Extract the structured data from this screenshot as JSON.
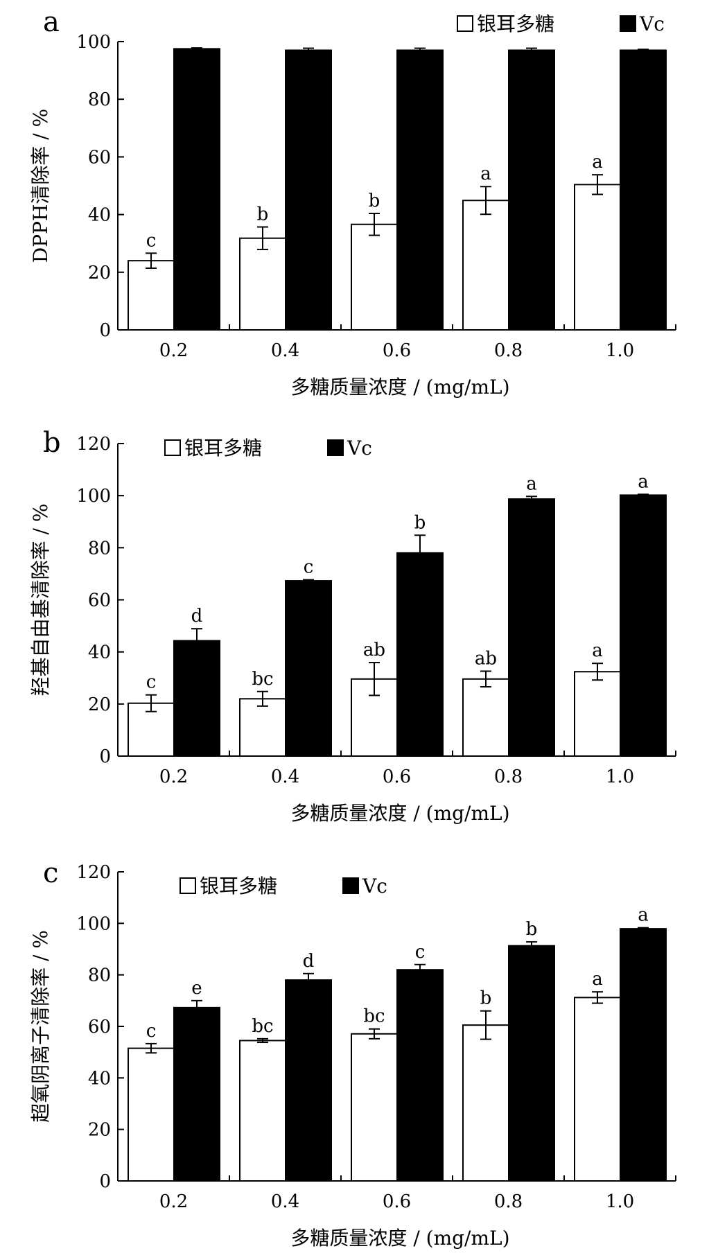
{
  "chart_data": [
    {
      "panel_label": "a",
      "type": "bar",
      "categories": [
        "0.2",
        "0.4",
        "0.6",
        "0.8",
        "1.0"
      ],
      "xlabel": "多糖质量浓度 / (mg/mL)",
      "ylabel": "DPPH清除率 / %",
      "ylim": [
        0,
        100
      ],
      "yticks": [
        "0",
        "20",
        "40",
        "60",
        "80",
        "100"
      ],
      "legend": [
        "银耳多糖",
        "Vc"
      ],
      "legend_position": "top-right",
      "series": [
        {
          "name": "银耳多糖",
          "color": "#ffffff",
          "values": [
            24,
            31.8,
            36.6,
            44.9,
            50.4
          ],
          "errors": [
            2.6,
            3.9,
            3.8,
            4.8,
            3.4
          ],
          "letters": [
            "c",
            "b",
            "b",
            "a",
            "a"
          ]
        },
        {
          "name": "Vc",
          "color": "#000000",
          "values": [
            97.5,
            97,
            97,
            97,
            97
          ],
          "errors": [
            0.3,
            0.7,
            0.7,
            0.7,
            0.3
          ],
          "letters": []
        }
      ]
    },
    {
      "panel_label": "b",
      "type": "bar",
      "categories": [
        "0.2",
        "0.4",
        "0.6",
        "0.8",
        "1.0"
      ],
      "xlabel": "多糖质量浓度 / (mg/mL)",
      "ylabel": "羟基自由基清除率 / %",
      "ylim": [
        0,
        120
      ],
      "yticks": [
        "0",
        "20",
        "40",
        "60",
        "80",
        "100",
        "120"
      ],
      "legend": [
        "银耳多糖",
        "Vc"
      ],
      "legend_position": "top-left",
      "series": [
        {
          "name": "银耳多糖",
          "color": "#ffffff",
          "values": [
            20.3,
            22,
            29.6,
            29.6,
            32.4
          ],
          "errors": [
            3.2,
            2.8,
            6.3,
            3,
            3.2
          ],
          "letters": [
            "c",
            "bc",
            "ab",
            "ab",
            "a"
          ]
        },
        {
          "name": "Vc",
          "color": "#000000",
          "values": [
            44.3,
            67.3,
            78,
            98.7,
            100.2
          ],
          "errors": [
            4.6,
            0.4,
            6.8,
            1,
            0.3
          ],
          "letters": [
            "d",
            "c",
            "b",
            "a",
            "a"
          ]
        }
      ]
    },
    {
      "panel_label": "c",
      "type": "bar",
      "categories": [
        "0.2",
        "0.4",
        "0.6",
        "0.8",
        "1.0"
      ],
      "xlabel": "多糖质量浓度 / (mg/mL)",
      "ylabel": "超氧阴离子清除率 / %",
      "ylim": [
        0,
        120
      ],
      "yticks": [
        "0",
        "20",
        "40",
        "60",
        "80",
        "100",
        "120"
      ],
      "legend": [
        "银耳多糖",
        "Vc"
      ],
      "legend_position": "top-left",
      "series": [
        {
          "name": "银耳多糖",
          "color": "#ffffff",
          "values": [
            51.5,
            54.5,
            57.1,
            60.5,
            71.2
          ],
          "errors": [
            1.8,
            0.7,
            1.9,
            5.5,
            2.2
          ],
          "letters": [
            "c",
            "bc",
            "bc",
            "b",
            "a"
          ]
        },
        {
          "name": "Vc",
          "color": "#000000",
          "values": [
            67.3,
            78,
            82,
            91.3,
            97.9
          ],
          "errors": [
            2.7,
            2.5,
            2,
            1.5,
            0.4
          ],
          "letters": [
            "e",
            "d",
            "c",
            "b",
            "a"
          ]
        }
      ]
    }
  ]
}
